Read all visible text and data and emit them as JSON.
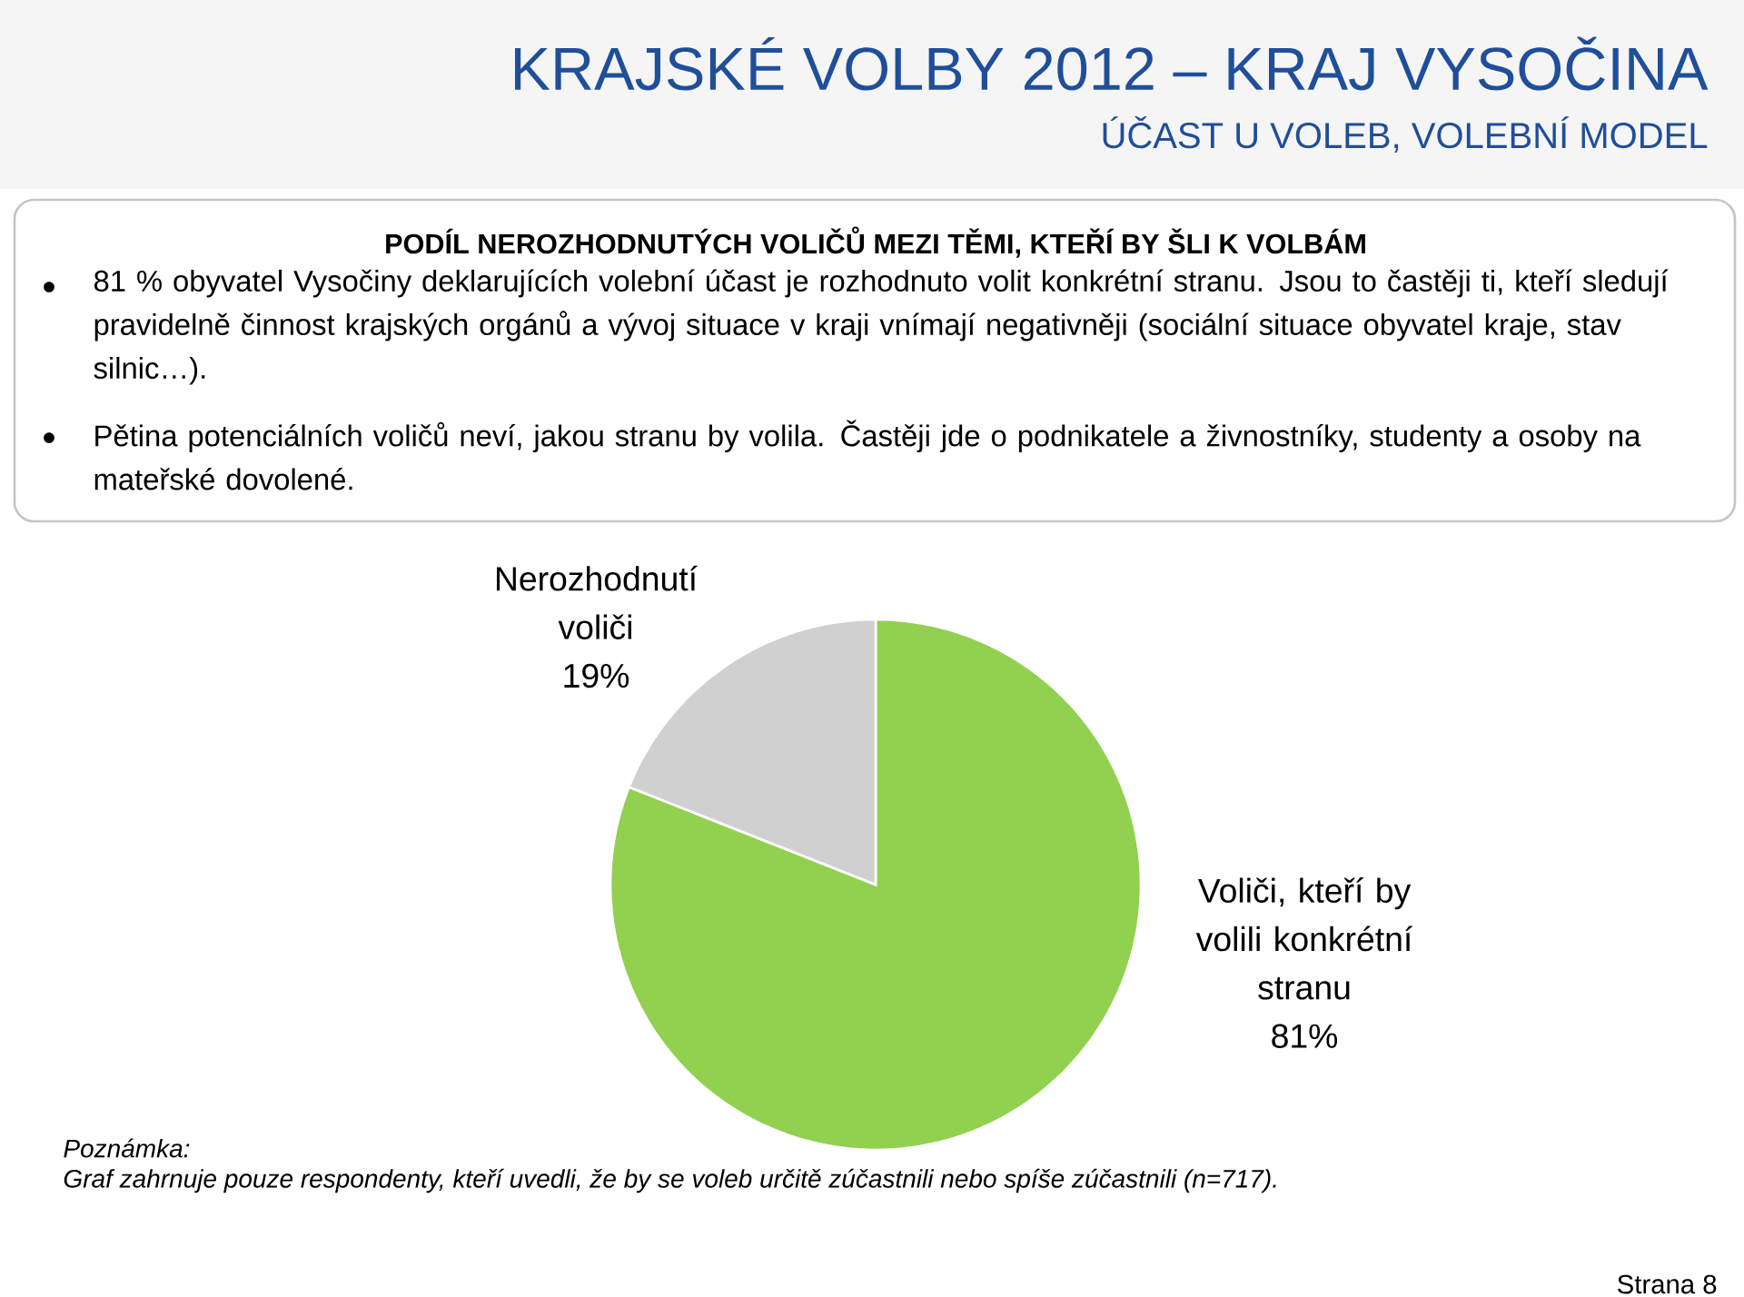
{
  "chart_data": {
    "type": "pie",
    "title": "KRAJSKÉ VOLBY 2012 – KRAJ VYSOČINA",
    "subtitle": "ÚČAST U VOLEB, VOLEBNÍ MODEL",
    "categories": [
      "Voliči, kteří by volili konkrétní stranu",
      "Nerozhodnutí voliči"
    ],
    "values": [
      81,
      19
    ],
    "value_labels": [
      "81%",
      "19%"
    ],
    "colors": [
      "#92d050",
      "#d0d0d0"
    ],
    "annotations": [
      "PODÍL NEROZHODNUTÝCH VOLIČŮ MEZI TĚMI, KTEŘÍ BY ŠLI K VOLBÁM",
      "81 % obyvatel Vysočiny deklarujících volební účast je rozhodnuto volit konkrétní stranu. Jsou to častěji ti, kteří sledují pravidelně činnost krajských orgánů a vývoj situace v kraji vnímají negativněji (sociální situace obyvatel kraje, stav silnic…).",
      "Pětina potenciálních voličů neví, jakou stranu by volila. Častěji jde o podnikatele a živnostníky, studenty a osoby na mateřské dovolené.",
      "Poznámka:",
      "Graf zahrnuje pouze respondenty, kteří uvedli, že by se voleb určitě zúčastnili nebo spíše zúčastnili (n=717).",
      "Strana 8"
    ]
  }
}
